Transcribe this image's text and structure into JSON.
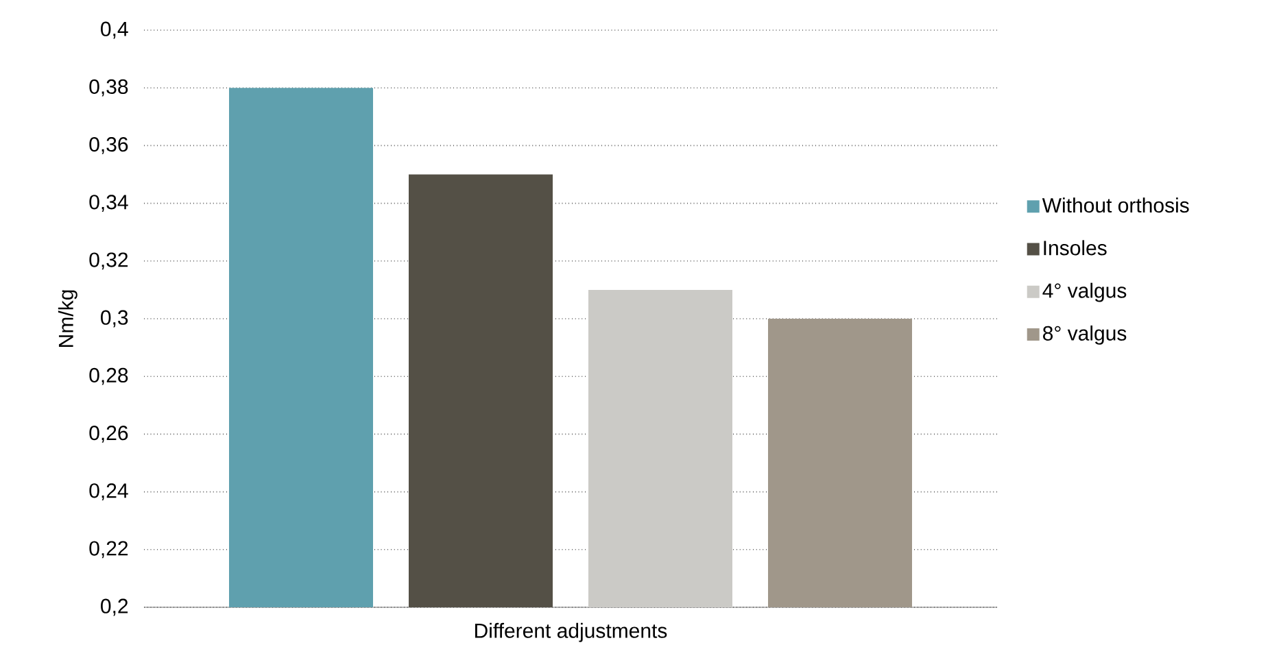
{
  "chart_data": {
    "type": "bar",
    "xlabel": "Different adjustments",
    "ylabel": "Nm/kg",
    "categories": [
      null
    ],
    "series": [
      {
        "name": "Without orthosis",
        "color": "#5fa0ae",
        "values": [
          0.38
        ]
      },
      {
        "name": "Insoles",
        "color": "#545046",
        "values": [
          0.35
        ]
      },
      {
        "name": "4° valgus",
        "color": "#cbcac6",
        "values": [
          0.31
        ]
      },
      {
        "name": "8° valgus",
        "color": "#a0978a",
        "values": [
          0.3
        ]
      }
    ],
    "ylim": [
      0.2,
      0.4
    ],
    "yticks": [
      {
        "value": 0.2,
        "label": "0,2"
      },
      {
        "value": 0.22,
        "label": "0,22"
      },
      {
        "value": 0.24,
        "label": "0,24"
      },
      {
        "value": 0.26,
        "label": "0,26"
      },
      {
        "value": 0.28,
        "label": "0,28"
      },
      {
        "value": 0.3,
        "label": "0,3"
      },
      {
        "value": 0.32,
        "label": "0,32"
      },
      {
        "value": 0.34,
        "label": "0,34"
      },
      {
        "value": 0.36,
        "label": "0,36"
      },
      {
        "value": 0.38,
        "label": "0,38"
      },
      {
        "value": 0.4,
        "label": "0,4"
      }
    ],
    "grid": "y",
    "legend": "right"
  }
}
